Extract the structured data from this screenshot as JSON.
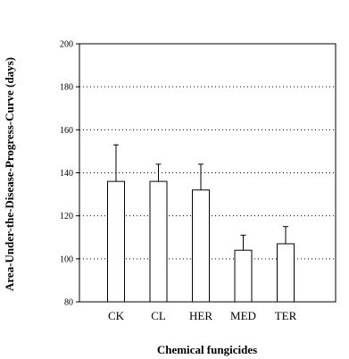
{
  "chart_data": {
    "type": "bar",
    "title": "",
    "xlabel": "Chemical fungicides",
    "ylabel": "Area-Under-the-Disease-Progress-Curve (days)",
    "categories": [
      "CK",
      "CL",
      "HER",
      "MED",
      "TER"
    ],
    "values": [
      136,
      136,
      132,
      104,
      107
    ],
    "errors": [
      17,
      8,
      12,
      7,
      8
    ],
    "ylim": [
      80,
      200
    ],
    "yticks": [
      80,
      100,
      120,
      140,
      160,
      180,
      200
    ],
    "grid": "horizontal-dotted",
    "bar_fill": "#ffffff",
    "bar_stroke": "#000000",
    "grid_color": "#000000"
  }
}
